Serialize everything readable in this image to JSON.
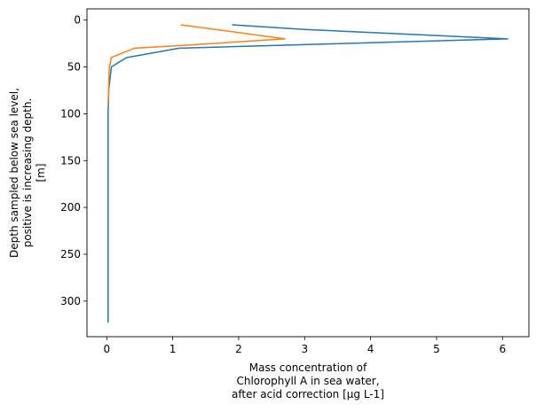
{
  "chart_data": {
    "type": "line",
    "title": "",
    "xlabel": [
      "Mass concentration of",
      "Chlorophyll A in sea water,",
      "after acid correction [µg L-1]"
    ],
    "ylabel": [
      "Depth sampled below sea level,",
      "positive is increasing depth.",
      "[m]"
    ],
    "xlim": [
      -0.3,
      6.4
    ],
    "ylim": [
      338,
      -12
    ],
    "y_inverted": true,
    "grid": false,
    "legend": "none",
    "x_ticks": [
      0,
      1,
      2,
      3,
      4,
      5,
      6
    ],
    "y_ticks": [
      0,
      50,
      100,
      150,
      200,
      250,
      300
    ],
    "series": [
      {
        "color": "#1f77b4",
        "points": [
          {
            "x": 1.9,
            "y": 5
          },
          {
            "x": 3.0,
            "y": 10
          },
          {
            "x": 6.08,
            "y": 20
          },
          {
            "x": 1.1,
            "y": 30
          },
          {
            "x": 0.3,
            "y": 40
          },
          {
            "x": 0.07,
            "y": 50
          },
          {
            "x": 0.03,
            "y": 75
          },
          {
            "x": 0.02,
            "y": 100
          },
          {
            "x": 0.02,
            "y": 150
          },
          {
            "x": 0.02,
            "y": 200
          },
          {
            "x": 0.02,
            "y": 250
          },
          {
            "x": 0.02,
            "y": 300
          },
          {
            "x": 0.02,
            "y": 323
          }
        ]
      },
      {
        "color": "#ff7f0e",
        "points": [
          {
            "x": 1.12,
            "y": 5
          },
          {
            "x": 2.7,
            "y": 20
          },
          {
            "x": 1.15,
            "y": 27
          },
          {
            "x": 0.42,
            "y": 30
          },
          {
            "x": 0.07,
            "y": 40
          },
          {
            "x": 0.04,
            "y": 50
          },
          {
            "x": 0.02,
            "y": 90
          }
        ]
      }
    ]
  }
}
